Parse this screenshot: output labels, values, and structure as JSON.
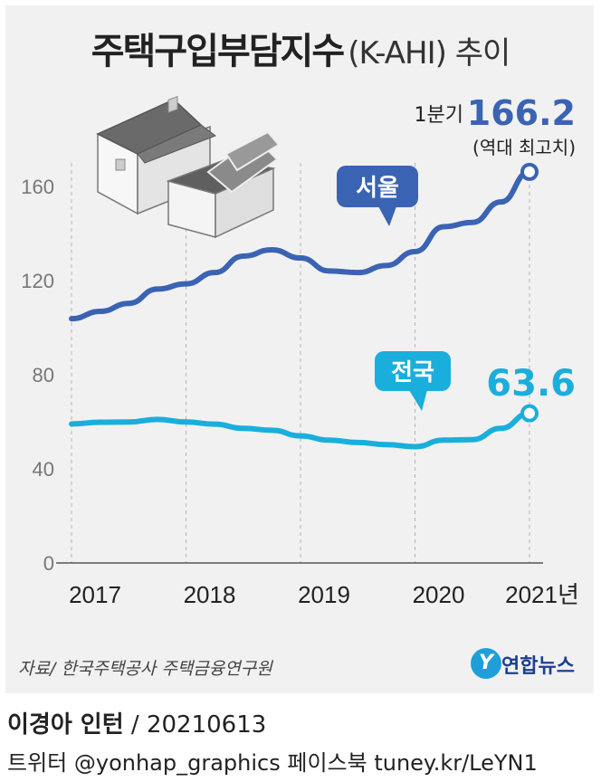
{
  "title": {
    "main": "주택구입부담지수",
    "sub": "(K-AHI) 추이"
  },
  "source": "자료/ 한국주택공사 주택금융연구원",
  "logo": {
    "mark": "Y",
    "text": "연합뉴스"
  },
  "credit": {
    "author": "이경아 인턴",
    "date": " / 20210613"
  },
  "sns": "트위터 @yonhap_graphics  페이스북 tuney.kr/LeYN1",
  "colors": {
    "seoul": "#3b63b3",
    "national": "#1aaedc",
    "grid": "#b5b5b5",
    "axis": "#555555"
  },
  "chart_data": {
    "type": "line",
    "title": "주택구입부담지수(K-AHI) 추이",
    "x_categories": [
      "2017",
      "2018",
      "2019",
      "2020",
      "2021년"
    ],
    "yticks": [
      0,
      40,
      80,
      120,
      160
    ],
    "ylim": [
      0,
      175
    ],
    "grid": "vertical dashed per year",
    "series": [
      {
        "name": "서울",
        "quarters": [
          "2017Q1",
          "2017Q2",
          "2017Q3",
          "2017Q4",
          "2018Q1",
          "2018Q2",
          "2018Q3",
          "2018Q4",
          "2019Q1",
          "2019Q2",
          "2019Q3",
          "2019Q4",
          "2020Q1",
          "2020Q2",
          "2020Q3",
          "2020Q4",
          "2021Q1"
        ],
        "values": [
          103.8,
          106.9,
          110.3,
          116.4,
          118.6,
          123.4,
          130.4,
          133.1,
          129.6,
          124.1,
          123.4,
          126.4,
          132.3,
          142.9,
          144.7,
          153.4,
          166.2
        ],
        "callout_label": "서울",
        "end_label_prefix": "1분기",
        "end_label": "166.2",
        "end_note": "(역대 최고치)"
      },
      {
        "name": "전국",
        "quarters": [
          "2017Q1",
          "2017Q2",
          "2017Q3",
          "2017Q4",
          "2018Q1",
          "2018Q2",
          "2018Q3",
          "2018Q4",
          "2019Q1",
          "2019Q2",
          "2019Q3",
          "2019Q4",
          "2020Q1",
          "2020Q2",
          "2020Q3",
          "2020Q4",
          "2021Q1"
        ],
        "values": [
          59.1,
          59.8,
          59.9,
          61.0,
          59.9,
          59.0,
          57.2,
          56.4,
          54.0,
          52.2,
          51.2,
          50.3,
          49.4,
          52.2,
          52.4,
          57.2,
          63.6
        ],
        "callout_label": "전국",
        "end_label": "63.6"
      }
    ]
  }
}
